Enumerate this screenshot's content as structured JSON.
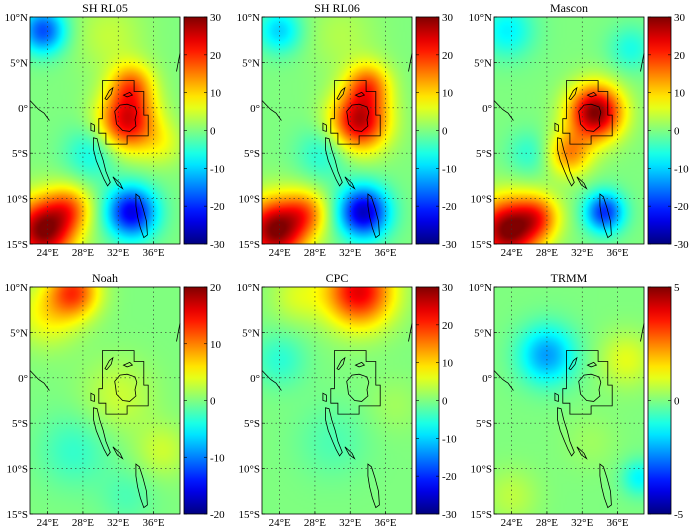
{
  "figure": {
    "lat_ticks": [
      "10°N",
      "5°N",
      "0°",
      "5°S",
      "10°S",
      "15°S"
    ],
    "lon_ticks": [
      "24°E",
      "28°E",
      "32°E",
      "36°E"
    ]
  },
  "chart_data": [
    {
      "type": "heatmap",
      "title": "SH RL05",
      "colorbar": {
        "ticks": [
          30,
          20,
          10,
          0,
          -10,
          -20,
          -30
        ],
        "vmin": -30,
        "vmax": 30
      },
      "lon_range": [
        22,
        39
      ],
      "lat_range": [
        -15,
        10
      ],
      "blobs": [
        {
          "lon": 33,
          "lat": -1.5,
          "r": 3.2,
          "v": 24
        },
        {
          "lon": 33.5,
          "lat": 2.5,
          "r": 2.5,
          "v": 14
        },
        {
          "lon": 23.5,
          "lat": -13.5,
          "r": 3.5,
          "v": 30
        },
        {
          "lon": 26.5,
          "lat": -11,
          "r": 2.5,
          "v": 12
        },
        {
          "lon": 33.5,
          "lat": -11.5,
          "r": 2.8,
          "v": -24
        },
        {
          "lon": 23.5,
          "lat": 8.5,
          "r": 2.5,
          "v": -18
        },
        {
          "lon": 29,
          "lat": -5,
          "r": 3,
          "v": -7
        },
        {
          "lon": 37,
          "lat": -4,
          "r": 2.5,
          "v": 5
        },
        {
          "lon": 31,
          "lat": 8,
          "r": 4,
          "v": 4
        }
      ]
    },
    {
      "type": "heatmap",
      "title": "SH RL06",
      "colorbar": {
        "ticks": [
          30,
          20,
          10,
          0,
          -10,
          -20,
          -30
        ],
        "vmin": -30,
        "vmax": 30
      },
      "lon_range": [
        22,
        39
      ],
      "lat_range": [
        -15,
        10
      ],
      "blobs": [
        {
          "lon": 33,
          "lat": -1.5,
          "r": 3.2,
          "v": 26
        },
        {
          "lon": 34,
          "lat": 2.5,
          "r": 2.5,
          "v": 15
        },
        {
          "lon": 23.5,
          "lat": -13.5,
          "r": 3.5,
          "v": 30
        },
        {
          "lon": 27,
          "lat": -11.5,
          "r": 2.5,
          "v": 12
        },
        {
          "lon": 33.5,
          "lat": -11.5,
          "r": 2.8,
          "v": -26
        },
        {
          "lon": 24,
          "lat": 8.5,
          "r": 2.5,
          "v": -10
        },
        {
          "lon": 29,
          "lat": -5,
          "r": 3,
          "v": -6
        },
        {
          "lon": 31,
          "lat": 8,
          "r": 4,
          "v": 3
        }
      ]
    },
    {
      "type": "heatmap",
      "title": "Mascon",
      "colorbar": {
        "ticks": [
          30,
          20,
          10,
          0,
          -10,
          -20,
          -30
        ],
        "vmin": -30,
        "vmax": 30
      },
      "lon_range": [
        22,
        39
      ],
      "lat_range": [
        -15,
        10
      ],
      "blobs": [
        {
          "lon": 33.5,
          "lat": -0.5,
          "r": 3,
          "v": 30
        },
        {
          "lon": 30.5,
          "lat": -5,
          "r": 2.5,
          "v": 14
        },
        {
          "lon": 23.5,
          "lat": -13.5,
          "r": 3.5,
          "v": 30
        },
        {
          "lon": 27,
          "lat": -12,
          "r": 2.5,
          "v": 14
        },
        {
          "lon": 34.5,
          "lat": -11.5,
          "r": 2.2,
          "v": -20
        },
        {
          "lon": 23.5,
          "lat": 8.5,
          "r": 3,
          "v": -8
        },
        {
          "lon": 37.5,
          "lat": 6.5,
          "r": 2.5,
          "v": -6
        },
        {
          "lon": 26,
          "lat": -5,
          "r": 2.5,
          "v": -5
        }
      ]
    },
    {
      "type": "heatmap",
      "title": "Noah",
      "colorbar": {
        "ticks": [
          20,
          10,
          0,
          -10,
          -20
        ],
        "vmin": -20,
        "vmax": 20
      },
      "lon_range": [
        22,
        39
      ],
      "lat_range": [
        -15,
        10
      ],
      "blobs": [
        {
          "lon": 27,
          "lat": 9.5,
          "r": 2.8,
          "v": 12
        },
        {
          "lon": 24,
          "lat": 7,
          "r": 3.5,
          "v": 5
        },
        {
          "lon": 32,
          "lat": -2,
          "r": 4,
          "v": 3
        },
        {
          "lon": 37,
          "lat": -8,
          "r": 3,
          "v": 3
        },
        {
          "lon": 27,
          "lat": -8,
          "r": 4,
          "v": -3
        },
        {
          "lon": 33,
          "lat": -13,
          "r": 3,
          "v": -2
        }
      ]
    },
    {
      "type": "heatmap",
      "title": "CPC",
      "colorbar": {
        "ticks": [
          30,
          20,
          10,
          0,
          -10,
          -20,
          -30
        ],
        "vmin": -30,
        "vmax": 30
      },
      "lon_range": [
        22,
        39
      ],
      "lat_range": [
        -15,
        10
      ],
      "blobs": [
        {
          "lon": 33,
          "lat": 9.5,
          "r": 3.8,
          "v": 24
        },
        {
          "lon": 26,
          "lat": 9,
          "r": 3,
          "v": 5
        },
        {
          "lon": 24,
          "lat": 2,
          "r": 3,
          "v": -5
        },
        {
          "lon": 30,
          "lat": -7,
          "r": 4,
          "v": -3
        },
        {
          "lon": 37,
          "lat": -3,
          "r": 3,
          "v": 2
        }
      ]
    },
    {
      "type": "heatmap",
      "title": "TRMM",
      "colorbar": {
        "ticks": [
          5,
          0,
          -5
        ],
        "vmin": -5,
        "vmax": 5
      },
      "lon_range": [
        22,
        39
      ],
      "lat_range": [
        -15,
        10
      ],
      "blobs": [
        {
          "lon": 28,
          "lat": 2.5,
          "r": 3.2,
          "v": -2.2
        },
        {
          "lon": 37,
          "lat": 2,
          "r": 3,
          "v": 1.0
        },
        {
          "lon": 24,
          "lat": -13,
          "r": 3,
          "v": 0.6
        },
        {
          "lon": 38.5,
          "lat": -11,
          "r": 2,
          "v": -1.3
        },
        {
          "lon": 33,
          "lat": -7,
          "r": 3,
          "v": 0.3
        }
      ]
    }
  ]
}
